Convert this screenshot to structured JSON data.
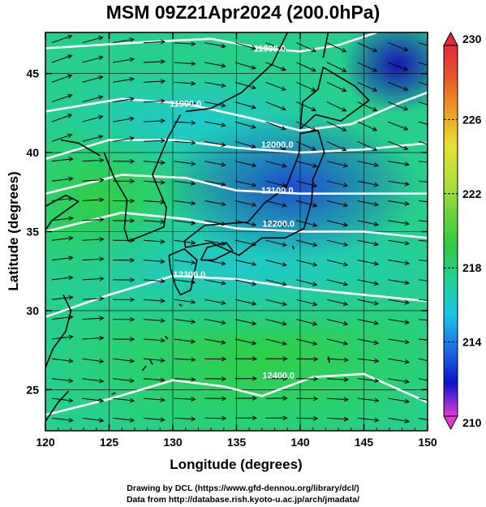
{
  "title": "MSM 09Z21Apr2024 (200.0hPa)",
  "footer": {
    "line1": "Drawing by DCL (https://www.gfd-dennou.org/library/dcl/)",
    "line2": "Data from http://database.rish.kyoto-u.ac.jp/arch/jmadata/"
  },
  "map": {
    "xlabel": "Longitude (degrees)",
    "ylabel": "Latitude  (degrees)",
    "lon_range": [
      120,
      150
    ],
    "lat_range": [
      22.4,
      47.6
    ],
    "x_ticks": [
      "120",
      "125",
      "130",
      "135",
      "140",
      "145",
      "150"
    ],
    "y_ticks": [
      "25",
      "30",
      "35",
      "40",
      "45"
    ],
    "contour_labels": [
      {
        "text": "11900.0",
        "lon": 131.0,
        "lat": 42.9
      },
      {
        "text": "11900.0",
        "lon": 137.6,
        "lat": 46.4
      },
      {
        "text": "12000.0",
        "lon": 138.2,
        "lat": 40.3
      },
      {
        "text": "12100.0",
        "lon": 138.2,
        "lat": 37.4
      },
      {
        "text": "12200.0",
        "lon": 138.3,
        "lat": 35.3
      },
      {
        "text": "12300.0",
        "lon": 131.3,
        "lat": 32.1
      },
      {
        "text": "12400.0",
        "lon": 138.3,
        "lat": 25.7
      }
    ]
  },
  "colorbar": {
    "min": 210,
    "max": 230,
    "tick_labels": [
      "230",
      "226",
      "222",
      "218",
      "214",
      "210"
    ],
    "colors": [
      "#e03ad6",
      "#0a14c8",
      "#1f6ee6",
      "#19c4e4",
      "#20d29a",
      "#30c846",
      "#6cd23c",
      "#b4e03c",
      "#e6e132",
      "#f0a028",
      "#e85a2a",
      "#e02a3a"
    ]
  }
}
